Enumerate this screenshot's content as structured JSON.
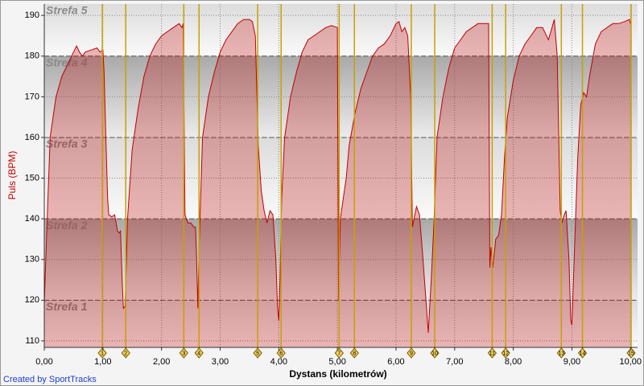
{
  "chart_data": {
    "type": "area",
    "ylabel": "Puls (BPM)",
    "xlabel": "Dystans (kilometrów)",
    "footer": "Created by SportTracks",
    "color": "#c00000",
    "xlim": [
      0,
      10.12
    ],
    "ylim": [
      108.4,
      192.8
    ],
    "xticks": [
      {
        "value": 0,
        "label": "0,00"
      },
      {
        "value": 1,
        "label": "1,00"
      },
      {
        "value": 2,
        "label": "2,00"
      },
      {
        "value": 3,
        "label": "3,00"
      },
      {
        "value": 4,
        "label": "4,00"
      },
      {
        "value": 5,
        "label": "5,00"
      },
      {
        "value": 6,
        "label": "6,00"
      },
      {
        "value": 7,
        "label": "7,00"
      },
      {
        "value": 8,
        "label": "8,00"
      },
      {
        "value": 9,
        "label": "9,00"
      },
      {
        "value": 10,
        "label": "10,00"
      }
    ],
    "yticks": [
      110,
      120,
      130,
      140,
      150,
      160,
      170,
      180,
      190
    ],
    "grid": true,
    "zone_lines": [
      120,
      140,
      160,
      180
    ],
    "zone_labels": [
      "Strefa 1",
      "Strefa 2",
      "Strefa 3",
      "Strefa 4",
      "Strefa 5"
    ],
    "laps": {
      "x": [
        0.99,
        1.39,
        2.38,
        2.64,
        3.64,
        4.04,
        5.03,
        5.29,
        6.26,
        6.66,
        7.64,
        7.87,
        8.82,
        9.18,
        10.01
      ],
      "labels": [
        "1",
        "2",
        "3",
        "4",
        "5",
        "6",
        "7",
        "8",
        "9",
        "10",
        "11",
        "12",
        "13",
        "14",
        "15"
      ],
      "color": "#c8a000"
    },
    "x": [
      0.0,
      0.02,
      0.05,
      0.1,
      0.15,
      0.2,
      0.3,
      0.4,
      0.5,
      0.55,
      0.6,
      0.65,
      0.7,
      0.8,
      0.9,
      0.95,
      1.0,
      1.02,
      1.05,
      1.08,
      1.1,
      1.15,
      1.2,
      1.25,
      1.28,
      1.3,
      1.33,
      1.35,
      1.38,
      1.42,
      1.5,
      1.6,
      1.7,
      1.8,
      1.9,
      2.0,
      2.1,
      2.2,
      2.3,
      2.35,
      2.37,
      2.4,
      2.45,
      2.5,
      2.55,
      2.58,
      2.6,
      2.62,
      2.64,
      2.7,
      2.8,
      2.9,
      3.0,
      3.1,
      3.2,
      3.3,
      3.4,
      3.5,
      3.55,
      3.6,
      3.65,
      3.7,
      3.75,
      3.8,
      3.85,
      3.9,
      3.95,
      3.98,
      4.0,
      4.02,
      4.05,
      4.1,
      4.2,
      4.3,
      4.4,
      4.5,
      4.6,
      4.7,
      4.8,
      4.9,
      5.0,
      5.02,
      5.05,
      5.1,
      5.15,
      5.2,
      5.3,
      5.4,
      5.5,
      5.6,
      5.7,
      5.8,
      5.9,
      6.0,
      6.05,
      6.1,
      6.15,
      6.2,
      6.25,
      6.28,
      6.32,
      6.35,
      6.4,
      6.45,
      6.5,
      6.55,
      6.6,
      6.65,
      6.7,
      6.8,
      6.9,
      7.0,
      7.1,
      7.2,
      7.3,
      7.4,
      7.5,
      7.58,
      7.6,
      7.62,
      7.65,
      7.7,
      7.75,
      7.8,
      7.85,
      7.9,
      8.0,
      8.1,
      8.2,
      8.3,
      8.4,
      8.5,
      8.6,
      8.7,
      8.75,
      8.8,
      8.83,
      8.87,
      8.9,
      8.95,
      8.98,
      9.0,
      9.05,
      9.1,
      9.15,
      9.2,
      9.25,
      9.3,
      9.4,
      9.5,
      9.6,
      9.7,
      9.8,
      9.9,
      9.98,
      10.0
    ],
    "values": [
      119,
      128,
      140,
      160,
      165,
      170,
      175,
      178,
      181,
      182.5,
      181,
      180,
      181,
      181.5,
      182,
      181,
      181.5,
      176,
      160,
      145,
      141,
      140.5,
      141,
      137,
      136.5,
      137,
      124,
      118,
      118.5,
      140,
      157,
      167,
      175,
      180,
      183,
      185,
      186,
      187,
      188,
      187,
      188,
      141,
      139,
      139,
      138,
      138,
      130,
      118,
      133,
      160,
      170,
      176,
      181,
      184,
      186,
      188,
      189,
      189,
      188.5,
      185,
      158,
      147,
      142,
      139,
      142,
      141,
      130,
      118,
      115,
      125,
      145,
      160,
      170,
      176,
      181,
      184,
      185,
      186,
      187,
      187.5,
      187,
      120,
      140,
      145,
      150,
      158,
      166,
      172,
      176,
      180,
      182,
      183,
      185,
      188,
      188.5,
      186,
      187,
      185,
      170,
      138,
      141,
      143,
      141,
      132,
      122,
      112,
      125,
      140,
      160,
      170,
      177,
      182,
      184,
      186,
      187,
      188,
      188,
      188,
      128,
      133,
      128,
      135,
      136,
      141,
      155,
      165,
      174,
      180,
      183,
      185,
      187,
      187,
      184,
      189,
      180,
      142,
      139,
      141,
      142,
      130,
      115,
      114,
      135,
      155,
      168,
      171,
      170,
      175,
      183,
      186,
      187,
      188,
      188,
      188.5,
      189,
      188
    ]
  }
}
